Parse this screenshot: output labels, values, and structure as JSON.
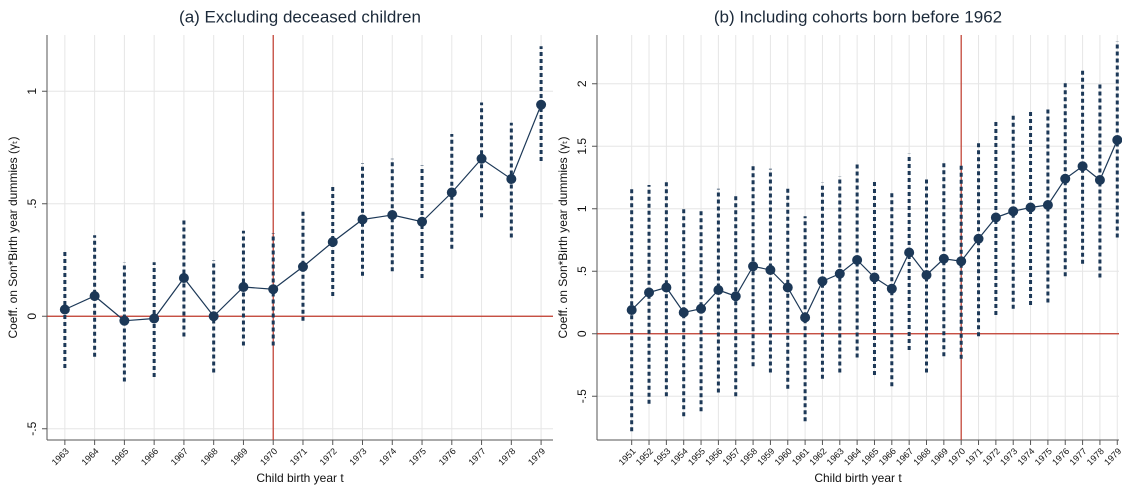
{
  "chart_data": [
    {
      "type": "errorbar-line",
      "title": "(a) Excluding deceased children",
      "x_label": "Child birth year t",
      "y_label": "Coeff. on Son*Birth year dummies (γₜ)",
      "x": [
        1963,
        1964,
        1965,
        1966,
        1967,
        1968,
        1969,
        1970,
        1971,
        1972,
        1973,
        1974,
        1975,
        1976,
        1977,
        1978,
        1979
      ],
      "series": [
        {
          "color": "#1c3857",
          "values": [
            0.03,
            0.09,
            -0.02,
            -0.01,
            0.17,
            0.0,
            0.13,
            0.12,
            0.22,
            0.33,
            0.43,
            0.45,
            0.42,
            0.55,
            0.7,
            0.61,
            0.94
          ],
          "ci_low": [
            -0.23,
            -0.18,
            -0.29,
            -0.27,
            -0.09,
            -0.25,
            -0.13,
            -0.13,
            -0.02,
            0.09,
            0.18,
            0.2,
            0.17,
            0.3,
            0.44,
            0.35,
            0.69
          ],
          "ci_high": [
            0.29,
            0.36,
            0.24,
            0.24,
            0.43,
            0.25,
            0.38,
            0.37,
            0.47,
            0.58,
            0.68,
            0.7,
            0.67,
            0.81,
            0.95,
            0.86,
            1.2
          ]
        }
      ],
      "xlim": [
        1962.4,
        1979.4
      ],
      "xticks": [
        1963,
        1964,
        1965,
        1966,
        1967,
        1968,
        1969,
        1970,
        1971,
        1972,
        1973,
        1974,
        1975,
        1976,
        1977,
        1978,
        1979
      ],
      "ylim": [
        -0.55,
        1.25
      ],
      "yticks": [
        {
          "value": -0.5,
          "label": "-.5"
        },
        0,
        {
          "value": 0.5,
          "label": ".5"
        },
        1
      ],
      "hline": 0,
      "vline": 1970,
      "ref_color": "#c0392b",
      "grid": true
    },
    {
      "type": "errorbar-line",
      "title": "(b) Including cohorts born before 1962",
      "x_label": "Child birth year t",
      "y_label": "Coeff. on Son*Birth year dummies (γₜ)",
      "x": [
        1951,
        1952,
        1953,
        1954,
        1955,
        1956,
        1957,
        1958,
        1959,
        1960,
        1961,
        1962,
        1963,
        1964,
        1965,
        1966,
        1967,
        1968,
        1969,
        1970,
        1971,
        1972,
        1973,
        1974,
        1975,
        1976,
        1977,
        1978,
        1979
      ],
      "series": [
        {
          "color": "#1c3857",
          "values": [
            0.19,
            0.33,
            0.37,
            0.17,
            0.2,
            0.35,
            0.3,
            0.54,
            0.51,
            0.37,
            0.13,
            0.42,
            0.48,
            0.59,
            0.45,
            0.36,
            0.65,
            0.47,
            0.6,
            0.58,
            0.76,
            0.93,
            0.98,
            1.01,
            1.03,
            1.24,
            1.34,
            1.23,
            1.55
          ],
          "ci_low": [
            -0.78,
            -0.56,
            -0.5,
            -0.66,
            -0.62,
            -0.47,
            -0.5,
            -0.26,
            -0.31,
            -0.44,
            -0.7,
            -0.36,
            -0.31,
            -0.19,
            -0.33,
            -0.42,
            -0.13,
            -0.31,
            -0.18,
            -0.2,
            -0.02,
            0.15,
            0.2,
            0.23,
            0.25,
            0.46,
            0.56,
            0.45,
            0.77
          ],
          "ci_high": [
            1.17,
            1.19,
            1.23,
            1.01,
            1.0,
            1.16,
            1.1,
            1.35,
            1.32,
            1.18,
            0.94,
            1.21,
            1.26,
            1.37,
            1.22,
            1.14,
            1.44,
            1.24,
            1.37,
            1.36,
            1.54,
            1.7,
            1.75,
            1.79,
            1.81,
            2.02,
            2.12,
            2.01,
            2.34
          ]
        }
      ],
      "xlim": [
        1949.0,
        1979.1
      ],
      "xticks": [
        1951,
        1952,
        1953,
        1954,
        1955,
        1956,
        1957,
        1958,
        1959,
        1960,
        1961,
        1962,
        1963,
        1964,
        1965,
        1966,
        1967,
        1968,
        1969,
        1970,
        1971,
        1972,
        1973,
        1974,
        1975,
        1976,
        1977,
        1978,
        1979
      ],
      "ylim": [
        -0.85,
        2.39
      ],
      "yticks": [
        {
          "value": -0.5,
          "label": "-.5"
        },
        0,
        {
          "value": 0.5,
          "label": ".5"
        },
        1,
        1.5,
        2
      ],
      "hline": 0,
      "vline": 1970,
      "ref_color": "#c0392b",
      "grid": true
    }
  ]
}
